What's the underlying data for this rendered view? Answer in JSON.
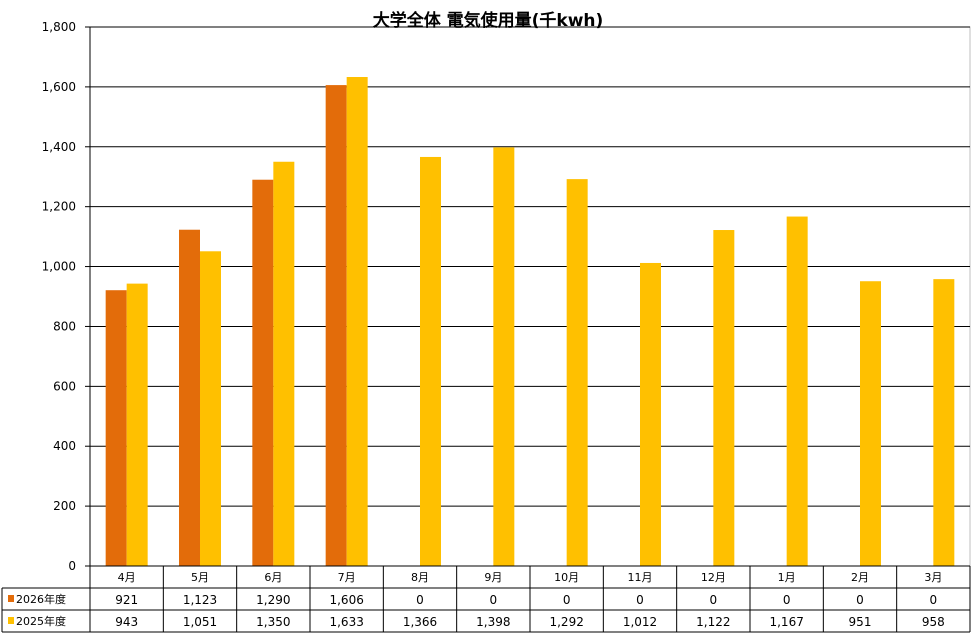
{
  "chart_data": {
    "type": "bar",
    "title": "大学全体 電気使用量(千kwh)",
    "categories": [
      "4月",
      "5月",
      "6月",
      "7月",
      "8月",
      "9月",
      "10月",
      "11月",
      "12月",
      "1月",
      "2月",
      "3月"
    ],
    "series": [
      {
        "name": "2026年度",
        "color": "#E36C0A",
        "values": [
          921,
          1123,
          1290,
          1606,
          0,
          0,
          0,
          0,
          0,
          0,
          0,
          0
        ],
        "table_labels": [
          "921",
          "1,123",
          "1,290",
          "1,606",
          "0",
          "0",
          "0",
          "0",
          "0",
          "0",
          "0",
          "0"
        ]
      },
      {
        "name": "2025年度",
        "color": "#FFC000",
        "values": [
          943,
          1051,
          1350,
          1633,
          1366,
          1398,
          1292,
          1012,
          1122,
          1167,
          951,
          958
        ],
        "table_labels": [
          "943",
          "1,051",
          "1,350",
          "1,633",
          "1,366",
          "1,398",
          "1,292",
          "1,012",
          "1,122",
          "1,167",
          "951",
          "958"
        ]
      }
    ],
    "y_ticks": [
      "0",
      "200",
      "400",
      "600",
      "800",
      "1,000",
      "1,200",
      "1,400",
      "1,600",
      "1,800"
    ],
    "ylim": [
      0,
      1800
    ],
    "grid": "horizontal",
    "legend": "data-table"
  }
}
